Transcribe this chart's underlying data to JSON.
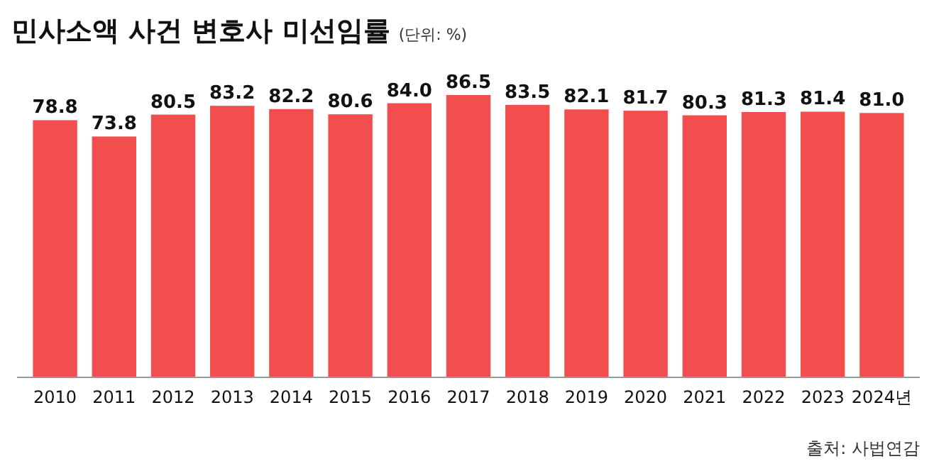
{
  "chart_data": {
    "type": "bar",
    "title": "민사소액 사건 변호사 미선임률",
    "subtitle": "(단위: %)",
    "categories": [
      "2010",
      "2011",
      "2012",
      "2013",
      "2014",
      "2015",
      "2016",
      "2017",
      "2018",
      "2019",
      "2020",
      "2021",
      "2022",
      "2023",
      "2024년"
    ],
    "values": [
      78.8,
      73.8,
      80.5,
      83.2,
      82.2,
      80.6,
      84.0,
      86.5,
      83.5,
      82.1,
      81.7,
      80.3,
      81.3,
      81.4,
      81.0
    ],
    "value_labels": [
      "78.8",
      "73.8",
      "80.5",
      "83.2",
      "82.2",
      "80.6",
      "84.0",
      "86.5",
      "83.5",
      "82.1",
      "81.7",
      "80.3",
      "81.3",
      "81.4",
      "81.0"
    ],
    "color": "#f24e4e",
    "tick_labels": "x",
    "annotations": [
      "출처: 사법연감"
    ]
  }
}
